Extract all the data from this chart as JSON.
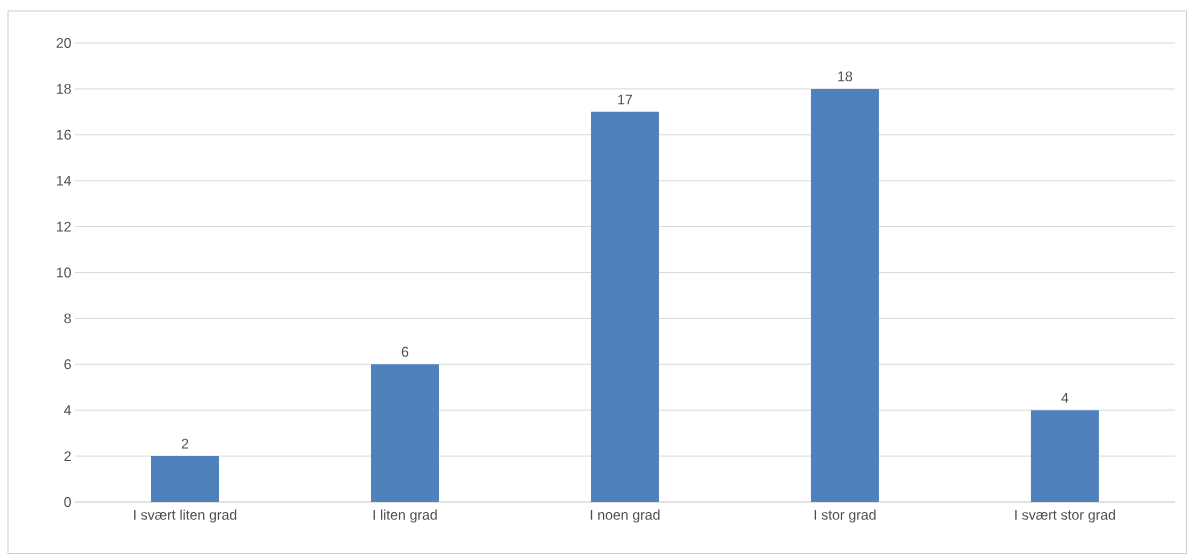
{
  "chart_data": {
    "type": "bar",
    "categories": [
      "I svært liten grad",
      "I liten grad",
      "I noen grad",
      "I stor grad",
      "I svært stor grad"
    ],
    "values": [
      2,
      6,
      17,
      18,
      4
    ],
    "color": "#4f81bd",
    "ylim": [
      0,
      20
    ],
    "yticks": [
      0,
      2,
      4,
      6,
      8,
      10,
      12,
      14,
      16,
      18,
      20
    ],
    "grid": "y",
    "data_labels": true
  }
}
